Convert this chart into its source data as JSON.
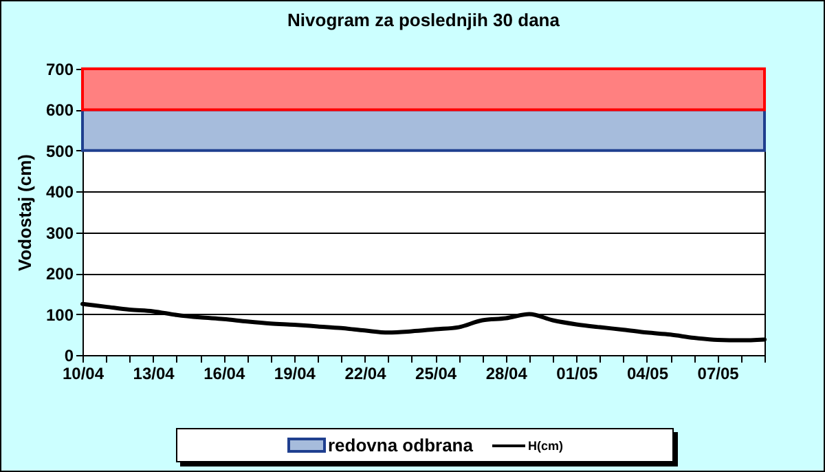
{
  "chart_data": {
    "type": "line",
    "title": "Nivogram za poslednjih 30 dana",
    "ylabel": "Vodostaj (cm)",
    "categories": [
      "10/04",
      null,
      null,
      "13/04",
      null,
      null,
      "16/04",
      null,
      null,
      "19/04",
      null,
      null,
      "22/04",
      null,
      null,
      "25/04",
      null,
      null,
      "28/04",
      null,
      null,
      "01/05",
      null,
      null,
      "04/05",
      null,
      null,
      "07/05",
      null,
      null
    ],
    "series": [
      {
        "name": "H(cm)",
        "color": "#000000",
        "values": [
          125,
          118,
          111,
          107,
          98,
          92,
          88,
          82,
          77,
          74,
          70,
          66,
          60,
          55,
          58,
          63,
          68,
          85,
          90,
          100,
          85,
          75,
          68,
          62,
          55,
          50,
          42,
          37,
          36,
          38
        ]
      }
    ],
    "bands": [
      {
        "axis": "y",
        "from": 500,
        "to": 600,
        "label": "redovna odbrana",
        "color": "#a6bcdc"
      },
      {
        "axis": "y",
        "from": 600,
        "to": 700,
        "color": "#ff8080"
      }
    ],
    "ylim": [
      0,
      700
    ],
    "yticks": [
      0,
      100,
      200,
      300,
      400,
      500,
      600,
      700
    ],
    "grid": "y",
    "legend": "bottom",
    "line_style": "solid",
    "marker": "none"
  }
}
